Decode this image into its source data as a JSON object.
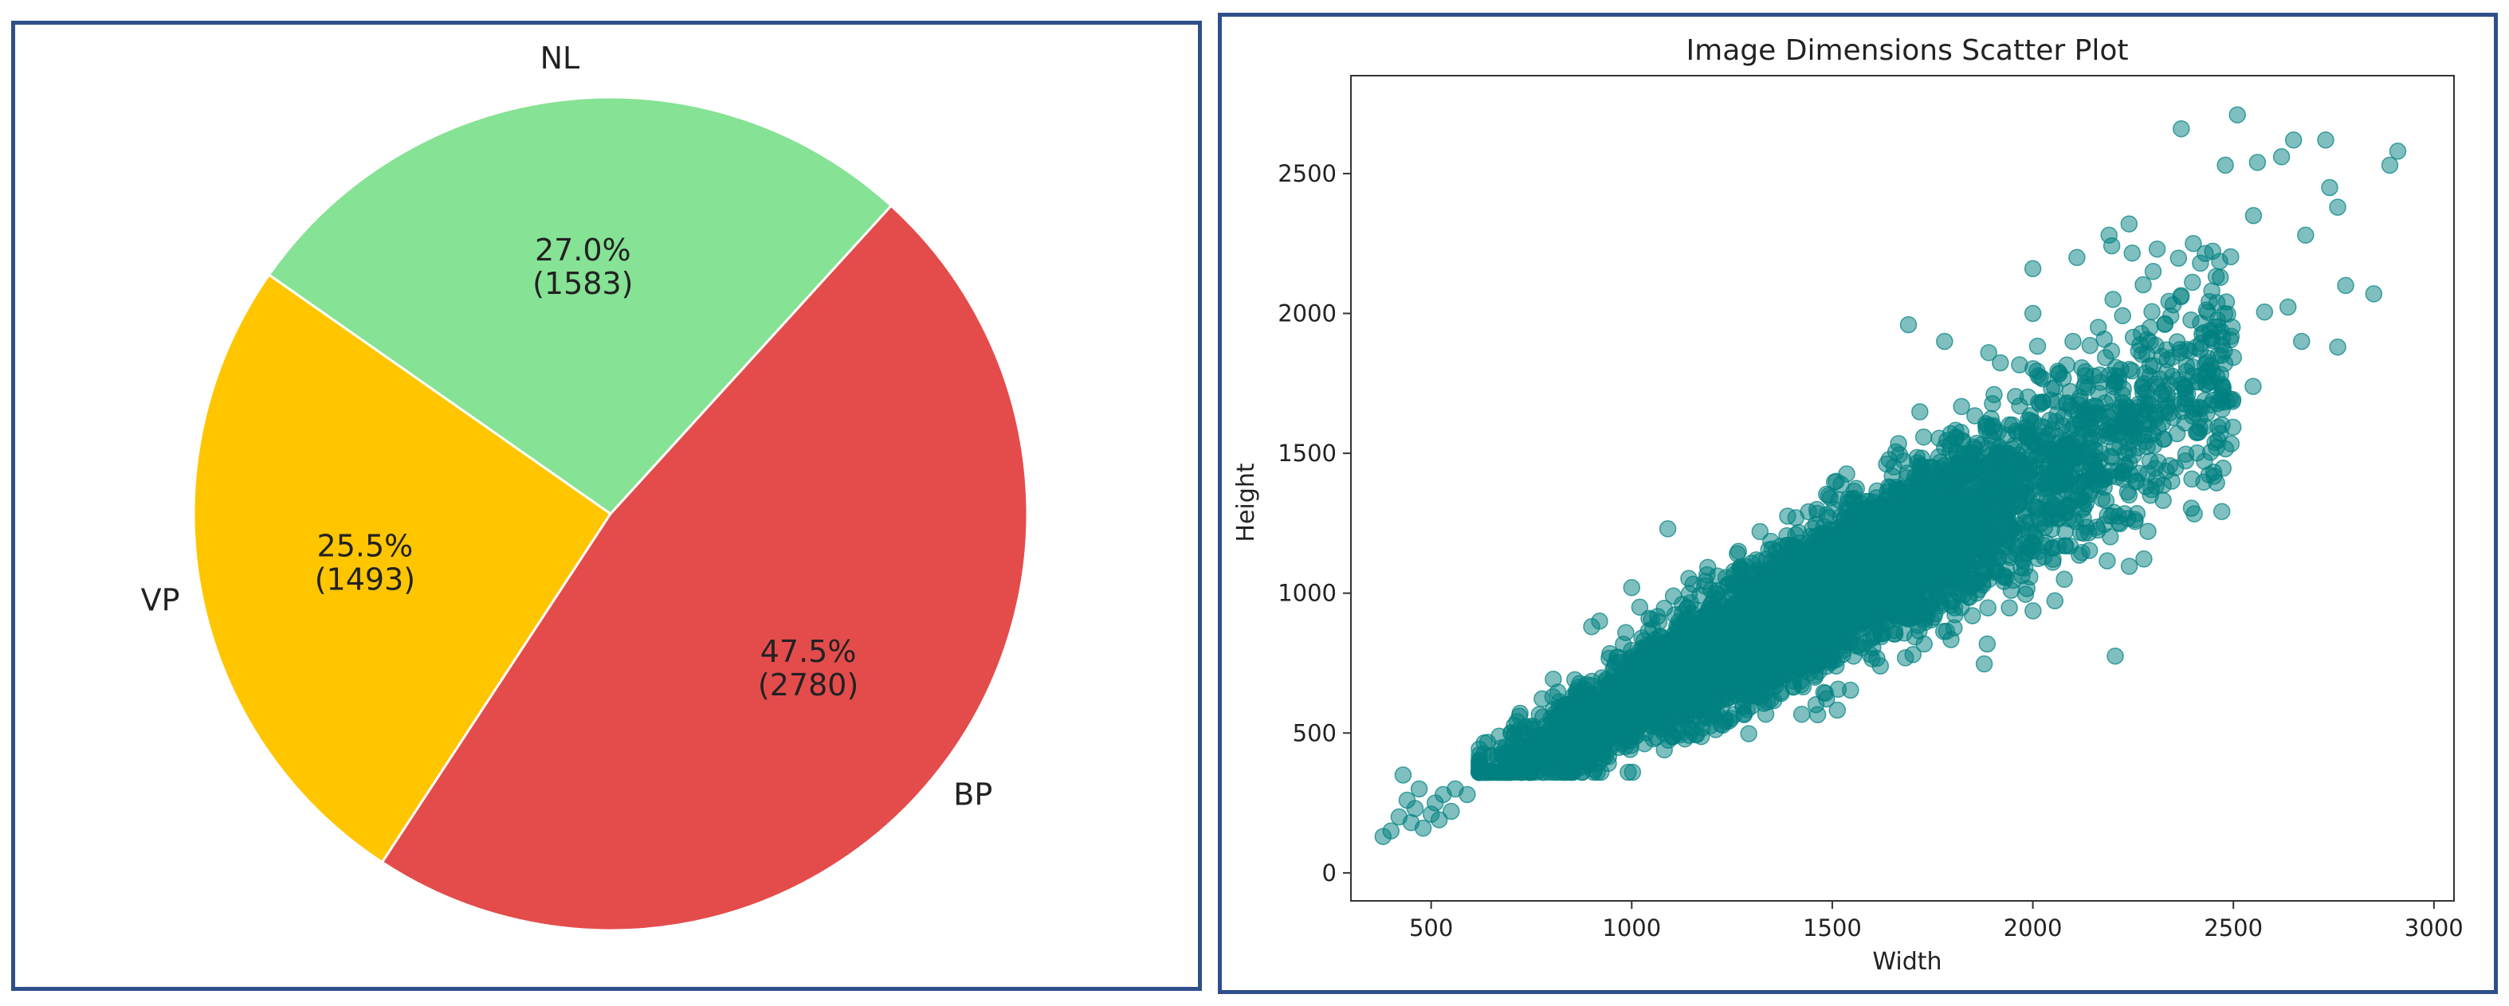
{
  "chart_data": [
    {
      "type": "pie",
      "slices": [
        {
          "label": "VP",
          "value": 1493,
          "percent": "25.5%",
          "count_text": "(1493)",
          "color": "#ffc600"
        },
        {
          "label": "BP",
          "value": 2780,
          "percent": "47.5%",
          "count_text": "(2780)",
          "color": "#e44c4c"
        },
        {
          "label": "NL",
          "value": 1583,
          "percent": "27.0%",
          "count_text": "(1583)",
          "color": "#86e294"
        }
      ],
      "start_angle_deg": 145,
      "direction": "counterclockwise",
      "edge_color": "#ffffff"
    },
    {
      "type": "scatter",
      "title": "Image Dimensions Scatter Plot",
      "xlabel": "Width",
      "ylabel": "Height",
      "xlim": [
        300,
        3050
      ],
      "ylim": [
        -100,
        2850
      ],
      "xticks": [
        500,
        1000,
        1500,
        2000,
        2500,
        3000
      ],
      "yticks": [
        0,
        500,
        1000,
        1500,
        2000,
        2500
      ],
      "grid": false,
      "marker_color": "#008080",
      "marker_alpha": 0.5,
      "points_approx": 5856,
      "trend": {
        "slope": 0.78,
        "intercept": -160
      },
      "series": [
        {
          "points": [
            [
              380,
              130
            ],
            [
              400,
              150
            ],
            [
              420,
              200
            ],
            [
              430,
              350
            ],
            [
              440,
              260
            ],
            [
              450,
              180
            ],
            [
              460,
              230
            ],
            [
              470,
              300
            ],
            [
              480,
              160
            ],
            [
              500,
              210
            ],
            [
              510,
              250
            ],
            [
              520,
              190
            ],
            [
              530,
              280
            ],
            [
              550,
              220
            ],
            [
              560,
              300
            ],
            [
              590,
              280
            ],
            [
              2510,
              2710
            ],
            [
              2370,
              2660
            ],
            [
              2650,
              2620
            ],
            [
              2730,
              2620
            ],
            [
              2910,
              2580
            ],
            [
              2890,
              2530
            ],
            [
              2740,
              2450
            ],
            [
              2760,
              2380
            ],
            [
              2680,
              2280
            ],
            [
              2780,
              2100
            ],
            [
              2850,
              2070
            ],
            [
              2670,
              1900
            ],
            [
              2760,
              1880
            ],
            [
              2480,
              2530
            ],
            [
              2560,
              2540
            ],
            [
              2620,
              2560
            ],
            [
              2240,
              2320
            ],
            [
              2310,
              2230
            ],
            [
              2550,
              2350
            ],
            [
              2450,
              1690
            ],
            [
              2380,
              1740
            ],
            [
              2280,
              1680
            ],
            [
              2180,
              1680
            ],
            [
              2230,
              1500
            ],
            [
              2150,
              1420
            ],
            [
              2050,
              1300
            ],
            [
              1950,
              1230
            ],
            [
              1890,
              1230
            ],
            [
              1930,
              1350
            ],
            [
              1690,
              1960
            ],
            [
              1780,
              1900
            ],
            [
              1890,
              1860
            ],
            [
              2000,
              2160
            ],
            [
              2110,
              2200
            ],
            [
              2190,
              2280
            ],
            [
              1320,
              1220
            ],
            [
              1090,
              1230
            ],
            [
              1420,
              1150
            ],
            [
              1510,
              1400
            ],
            [
              1860,
              1000
            ],
            [
              1840,
              1100
            ],
            [
              1760,
              1170
            ],
            [
              1640,
              1050
            ],
            [
              1580,
              980
            ],
            [
              1530,
              900
            ],
            [
              1480,
              860
            ],
            [
              1420,
              800
            ],
            [
              1380,
              770
            ],
            [
              1260,
              700
            ],
            [
              1160,
              680
            ],
            [
              1070,
              620
            ],
            [
              980,
              590
            ],
            [
              900,
              560
            ],
            [
              860,
              530
            ],
            [
              820,
              490
            ],
            [
              720,
              560
            ],
            [
              700,
              500
            ],
            [
              760,
              430
            ],
            [
              900,
              880
            ],
            [
              920,
              900
            ],
            [
              1000,
              1020
            ],
            [
              1020,
              950
            ],
            [
              2000,
              2000
            ],
            [
              2100,
              1900
            ],
            [
              2200,
              2050
            ],
            [
              2300,
              2150
            ],
            [
              2400,
              2250
            ]
          ]
        }
      ]
    }
  ]
}
